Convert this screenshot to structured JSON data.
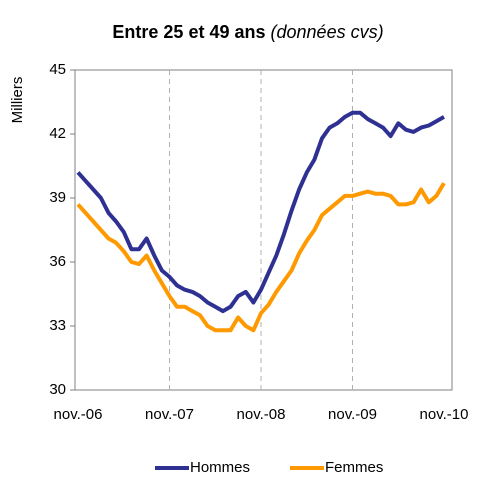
{
  "chart_data": {
    "type": "line",
    "title": "Entre 25 et 49 ans",
    "subtitle": "(données cvs)",
    "ylabel": "Milliers",
    "categories": [
      "nov.-06",
      null,
      null,
      null,
      null,
      null,
      null,
      null,
      null,
      null,
      null,
      null,
      "nov.-07",
      null,
      null,
      null,
      null,
      null,
      null,
      null,
      null,
      null,
      null,
      null,
      "nov.-08",
      null,
      null,
      null,
      null,
      null,
      null,
      null,
      null,
      null,
      null,
      null,
      "nov.-09",
      null,
      null,
      null,
      null,
      null,
      null,
      null,
      null,
      null,
      null,
      null,
      "nov.-10"
    ],
    "series": [
      {
        "name": "Hommes",
        "color": "#2e3192",
        "values": [
          40.2,
          39.8,
          39.4,
          39.0,
          38.3,
          37.9,
          37.4,
          36.6,
          36.6,
          37.1,
          36.3,
          35.6,
          35.3,
          34.9,
          34.7,
          34.6,
          34.4,
          34.1,
          33.9,
          33.7,
          33.9,
          34.4,
          34.6,
          34.1,
          34.7,
          35.5,
          36.3,
          37.3,
          38.4,
          39.4,
          40.2,
          40.8,
          41.8,
          42.3,
          42.5,
          42.8,
          43.0,
          43.0,
          42.7,
          42.5,
          42.3,
          41.9,
          42.5,
          42.2,
          42.1,
          42.3,
          42.4,
          42.6,
          42.8
        ]
      },
      {
        "name": "Femmes",
        "color": "#ff9900",
        "values": [
          38.7,
          38.3,
          37.9,
          37.5,
          37.1,
          36.9,
          36.5,
          36.0,
          35.9,
          36.3,
          35.6,
          35.0,
          34.4,
          33.9,
          33.9,
          33.7,
          33.5,
          33.0,
          32.8,
          32.8,
          32.8,
          33.4,
          33.0,
          32.8,
          33.6,
          34.0,
          34.6,
          35.1,
          35.6,
          36.4,
          37.0,
          37.5,
          38.2,
          38.5,
          38.8,
          39.1,
          39.1,
          39.2,
          39.3,
          39.2,
          39.2,
          39.1,
          38.7,
          38.7,
          38.8,
          39.4,
          38.8,
          39.1,
          39.7
        ]
      }
    ],
    "ylim": [
      30,
      45
    ],
    "yticks": [
      30,
      33,
      36,
      39,
      42,
      45
    ],
    "xgrid": true,
    "legend": "bottom"
  }
}
